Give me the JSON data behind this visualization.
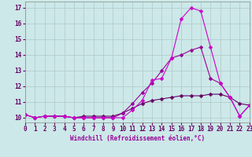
{
  "background_color": "#cce8e8",
  "grid_color": "#b0c8c8",
  "xlabel": "Windchill (Refroidissement éolien,°C)",
  "xlim": [
    0,
    23
  ],
  "ylim": [
    9.7,
    17.4
  ],
  "yticks": [
    10,
    11,
    12,
    13,
    14,
    15,
    16,
    17
  ],
  "xticks": [
    0,
    1,
    2,
    3,
    4,
    5,
    6,
    7,
    8,
    9,
    10,
    11,
    12,
    13,
    14,
    15,
    16,
    17,
    18,
    19,
    20,
    21,
    22,
    23
  ],
  "line1": {
    "x": [
      0,
      1,
      2,
      3,
      4,
      5,
      6,
      7,
      8,
      9,
      10,
      11,
      12,
      13,
      14,
      15,
      16,
      17,
      18,
      19,
      20,
      21,
      22,
      23
    ],
    "y": [
      10.2,
      10.0,
      10.1,
      10.1,
      10.1,
      10.0,
      10.0,
      10.0,
      10.0,
      10.0,
      10.0,
      10.5,
      11.1,
      12.4,
      12.5,
      13.8,
      16.3,
      17.0,
      16.8,
      14.5,
      12.2,
      11.3,
      10.1,
      10.8
    ],
    "color": "#cc00cc",
    "marker": "D",
    "markersize": 2.5,
    "linewidth": 0.8
  },
  "line2": {
    "x": [
      0,
      1,
      2,
      3,
      4,
      5,
      6,
      7,
      8,
      9,
      10,
      11,
      12,
      13,
      14,
      15,
      16,
      17,
      18,
      19,
      20,
      21,
      22,
      23
    ],
    "y": [
      10.2,
      10.0,
      10.1,
      10.1,
      10.1,
      10.0,
      10.0,
      10.0,
      10.0,
      10.0,
      10.3,
      10.9,
      11.6,
      12.2,
      13.0,
      13.8,
      14.0,
      14.3,
      14.5,
      12.5,
      12.2,
      11.3,
      10.1,
      10.8
    ],
    "color": "#990099",
    "marker": "D",
    "markersize": 2.5,
    "linewidth": 0.8
  },
  "line3": {
    "x": [
      0,
      1,
      2,
      3,
      4,
      5,
      6,
      7,
      8,
      9,
      10,
      11,
      12,
      13,
      14,
      15,
      16,
      17,
      18,
      19,
      20,
      21,
      22,
      23
    ],
    "y": [
      10.2,
      10.0,
      10.1,
      10.1,
      10.1,
      10.0,
      10.1,
      10.1,
      10.1,
      10.1,
      10.3,
      10.6,
      10.9,
      11.1,
      11.2,
      11.3,
      11.4,
      11.4,
      11.4,
      11.5,
      11.5,
      11.3,
      10.9,
      10.8
    ],
    "color": "#660066",
    "marker": "D",
    "markersize": 2.5,
    "linewidth": 0.8
  },
  "xlabel_color": "#990099",
  "tick_color": "#660066",
  "tick_fontsize": 5.5,
  "xlabel_fontsize": 5.5
}
